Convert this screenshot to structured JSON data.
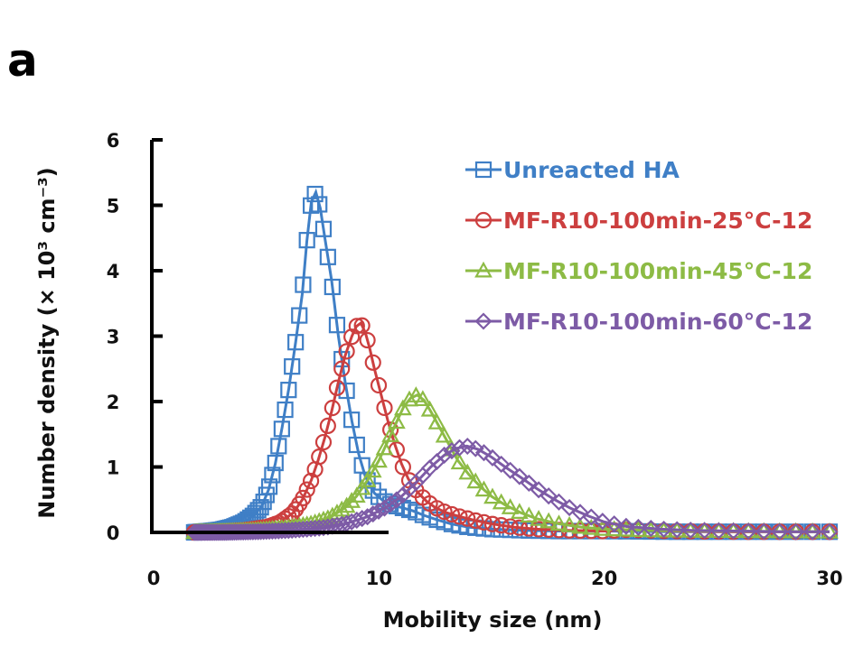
{
  "panel_label": "a",
  "chart_data": {
    "type": "scatter",
    "title": "",
    "xlabel": "Mobility size (nm)",
    "ylabel": "Number density (× 10³ cm⁻³)",
    "xlim": [
      0,
      30
    ],
    "ylim": [
      0,
      6
    ],
    "xticks": [
      0,
      10,
      20,
      30
    ],
    "yticks": [
      0,
      1,
      2,
      3,
      4,
      5,
      6
    ],
    "grid": false,
    "legend_position": "top-right",
    "series": [
      {
        "name": "Unreacted HA",
        "color": "#3f7fc6",
        "marker": "square",
        "x": [
          1.8,
          2.5,
          3.0,
          3.5,
          4.0,
          4.4,
          4.8,
          5.1,
          5.4,
          5.7,
          6.0,
          6.3,
          6.6,
          6.8,
          7.0,
          7.2,
          7.4,
          7.6,
          7.9,
          8.2,
          8.5,
          8.8,
          9.1,
          9.4,
          9.8,
          10.2,
          10.6,
          11.0,
          11.5,
          12.0,
          12.6,
          13.2,
          14.0,
          15.0,
          16.5,
          18.0,
          20.0,
          23.0,
          26.0,
          30.0
        ],
        "y": [
          0.0,
          0.02,
          0.04,
          0.08,
          0.15,
          0.25,
          0.4,
          0.65,
          1.05,
          1.6,
          2.2,
          2.9,
          3.65,
          4.45,
          5.05,
          5.2,
          4.95,
          4.5,
          3.85,
          3.0,
          2.3,
          1.7,
          1.2,
          0.85,
          0.6,
          0.48,
          0.42,
          0.38,
          0.33,
          0.26,
          0.19,
          0.13,
          0.08,
          0.05,
          0.03,
          0.02,
          0.02,
          0.01,
          0.01,
          0.01
        ]
      },
      {
        "name": "MF-R10-100min-25°C-12",
        "color": "#cc3f3f",
        "marker": "circle",
        "x": [
          1.8,
          3.0,
          4.0,
          5.0,
          5.6,
          6.2,
          6.6,
          7.0,
          7.3,
          7.6,
          7.9,
          8.2,
          8.5,
          8.8,
          9.0,
          9.2,
          9.4,
          9.6,
          9.8,
          10.1,
          10.4,
          10.7,
          11.0,
          11.3,
          11.7,
          12.1,
          12.5,
          13.0,
          13.6,
          14.3,
          15.0,
          16.0,
          17.0,
          18.5,
          20.0,
          21.0,
          23.0,
          26.0,
          30.0
        ],
        "y": [
          0.0,
          0.01,
          0.03,
          0.08,
          0.15,
          0.3,
          0.5,
          0.8,
          1.1,
          1.45,
          1.85,
          2.3,
          2.7,
          3.0,
          3.15,
          3.2,
          3.05,
          2.8,
          2.5,
          2.1,
          1.7,
          1.35,
          1.05,
          0.82,
          0.62,
          0.48,
          0.38,
          0.3,
          0.24,
          0.18,
          0.13,
          0.08,
          0.05,
          0.03,
          0.02,
          0.04,
          0.02,
          0.01,
          0.01
        ]
      },
      {
        "name": "MF-R10-100min-45°C-12",
        "color": "#8dbb45",
        "marker": "triangle",
        "x": [
          1.8,
          3.0,
          4.5,
          6.0,
          7.0,
          7.8,
          8.5,
          9.0,
          9.5,
          10.0,
          10.4,
          10.8,
          11.1,
          11.4,
          11.7,
          12.0,
          12.3,
          12.7,
          13.1,
          13.5,
          14.0,
          14.5,
          15.0,
          15.6,
          16.3,
          17.0,
          18.0,
          19.0,
          20.0,
          22.0,
          25.0,
          30.0
        ],
        "y": [
          0.0,
          0.01,
          0.03,
          0.07,
          0.13,
          0.22,
          0.38,
          0.55,
          0.8,
          1.1,
          1.4,
          1.7,
          1.92,
          2.05,
          2.1,
          2.02,
          1.85,
          1.6,
          1.35,
          1.1,
          0.88,
          0.7,
          0.55,
          0.42,
          0.3,
          0.21,
          0.13,
          0.08,
          0.05,
          0.03,
          0.02,
          0.01
        ]
      },
      {
        "name": "MF-R10-100min-60°C-12",
        "color": "#7d5ba6",
        "marker": "diamond",
        "x": [
          1.8,
          3.0,
          4.5,
          6.0,
          7.5,
          8.5,
          9.5,
          10.3,
          11.0,
          11.7,
          12.3,
          12.9,
          13.4,
          13.9,
          14.4,
          15.0,
          15.6,
          16.3,
          17.0,
          17.8,
          18.5,
          19.3,
          20.0,
          21.0,
          22.5,
          24.0,
          26.0,
          28.0,
          30.0
        ],
        "y": [
          0.0,
          0.0,
          0.01,
          0.03,
          0.07,
          0.13,
          0.24,
          0.38,
          0.55,
          0.78,
          1.0,
          1.18,
          1.28,
          1.32,
          1.27,
          1.15,
          1.0,
          0.84,
          0.67,
          0.5,
          0.37,
          0.25,
          0.16,
          0.09,
          0.05,
          0.03,
          0.02,
          0.01,
          0.01
        ]
      }
    ]
  }
}
